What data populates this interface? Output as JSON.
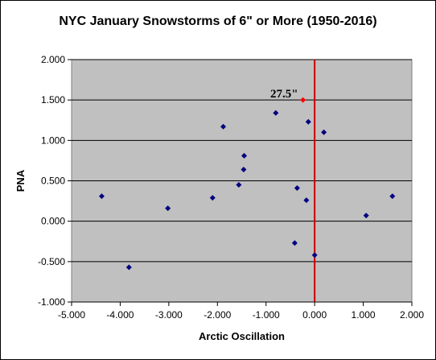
{
  "chart_data": {
    "type": "scatter",
    "title": "NYC January Snowstorms of 6\" or More (1950-2016)",
    "xlabel": "Arctic Oscillation",
    "ylabel": "PNA",
    "xlim": [
      -5,
      2
    ],
    "ylim": [
      -1,
      2
    ],
    "x_ticks": [
      "-5.000",
      "-4.000",
      "-3.000",
      "-2.000",
      "-1.000",
      "0.000",
      "1.000",
      "2.000"
    ],
    "y_ticks": [
      "-1.000",
      "-0.500",
      "0.000",
      "0.500",
      "1.000",
      "1.500",
      "2.000"
    ],
    "grid": "horizontal",
    "plot_background": "#c0c0c0",
    "point_color": "#000080",
    "highlight_color": "#ff0000",
    "reference_line": {
      "x": 0,
      "color": "#cc0000"
    },
    "series": [
      {
        "values": [
          {
            "x": -4.38,
            "y": 0.31
          },
          {
            "x": -3.82,
            "y": -0.57
          },
          {
            "x": -3.02,
            "y": 0.16
          },
          {
            "x": -2.1,
            "y": 0.29
          },
          {
            "x": -1.88,
            "y": 1.17
          },
          {
            "x": -1.56,
            "y": 0.45
          },
          {
            "x": -1.45,
            "y": 0.81
          },
          {
            "x": -1.46,
            "y": 0.64
          },
          {
            "x": -0.8,
            "y": 1.34
          },
          {
            "x": -0.41,
            "y": -0.27
          },
          {
            "x": -0.36,
            "y": 0.41
          },
          {
            "x": -0.13,
            "y": 1.23
          },
          {
            "x": -0.17,
            "y": 0.26
          },
          {
            "x": 0.0,
            "y": -0.42
          },
          {
            "x": 0.19,
            "y": 1.1
          },
          {
            "x": 1.06,
            "y": 0.07
          },
          {
            "x": 1.6,
            "y": 0.31
          }
        ]
      }
    ],
    "highlight_point": {
      "x": -0.24,
      "y": 1.5
    },
    "annotation": "27.5\""
  }
}
